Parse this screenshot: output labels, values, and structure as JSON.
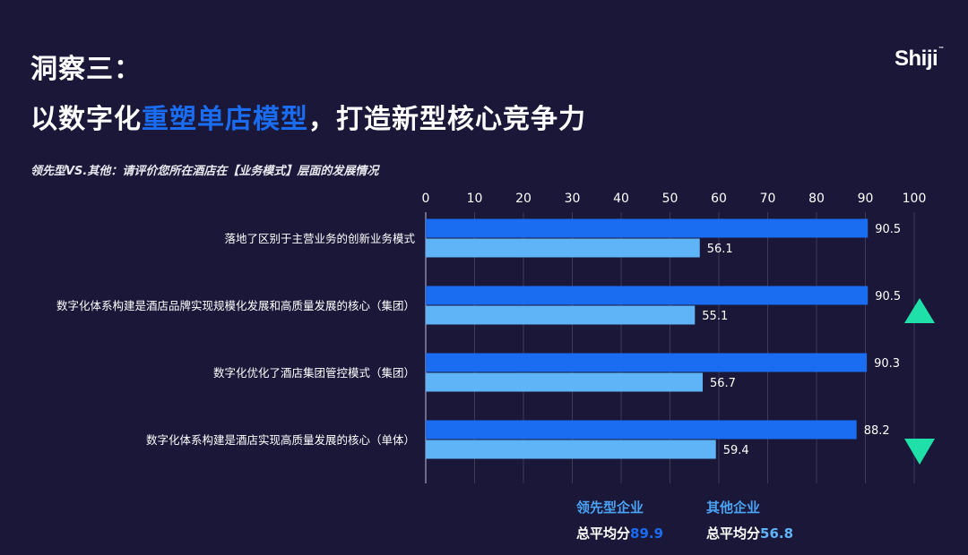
{
  "header": {
    "title_line1": "洞察三：",
    "title_line2_pre": "以数字化",
    "title_line2_highlight": "重塑单店模型",
    "title_line2_post": "，打造新型核心竞争力",
    "subtitle": "领先型VS.其他：请评价您所在酒店在【业务模式】层面的发展情况"
  },
  "logo": {
    "text": "Shiji",
    "mark": "™"
  },
  "chart_data": {
    "type": "bar",
    "orientation": "horizontal",
    "xlim": [
      0,
      100
    ],
    "x_ticks": [
      "0",
      "10",
      "20",
      "30",
      "40",
      "50",
      "60",
      "70",
      "80",
      "90",
      "100"
    ],
    "categories": [
      "落地了区别于主营业务的创新业务模式",
      "数字化体系构建是酒店品牌实现规模化发展和高质量发展的核心（集团）",
      "数字化优化了酒店集团管控模式（集团）",
      "数字化体系构建是酒店实现高质量发展的核心（单体）"
    ],
    "series": [
      {
        "name": "领先型企业",
        "values": [
          90.5,
          90.5,
          90.3,
          88.2
        ],
        "labels": [
          "90.5",
          "90.5",
          "90.3",
          "88.2"
        ],
        "color": "#1a6cf0"
      },
      {
        "name": "其他企业",
        "values": [
          56.1,
          55.1,
          56.7,
          59.4
        ],
        "labels": [
          "56.1",
          "55.1",
          "56.7",
          "59.4"
        ],
        "color": "#5fb4f7"
      }
    ],
    "markers": [
      {
        "category_index": 1,
        "shape": "triangle-up-icon",
        "color": "#1fe0a8"
      },
      {
        "category_index": 3,
        "shape": "triangle-down-icon",
        "color": "#1fe0a8"
      }
    ],
    "grid": true
  },
  "legend": {
    "leader_name": "领先型企业",
    "other_name": "其他企业",
    "avg_label": "总平均分",
    "leader_avg": "89.9",
    "other_avg": "56.8"
  }
}
